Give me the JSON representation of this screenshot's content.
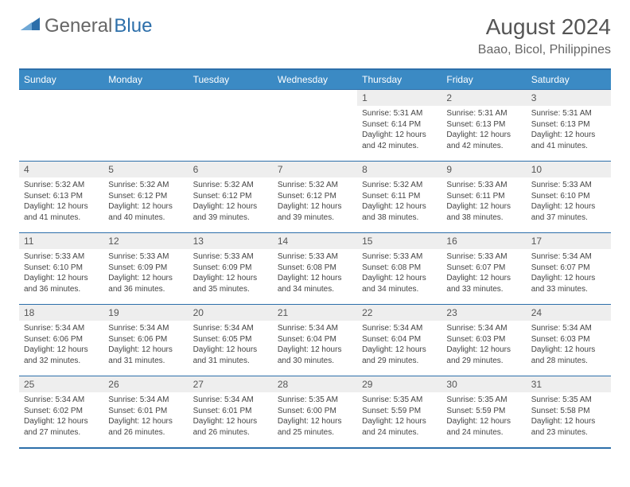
{
  "colors": {
    "header_blue": "#3b8ac4",
    "rule_blue": "#2d6faa",
    "daynum_bg": "#eeeeee",
    "text": "#444444",
    "title_text": "#555555",
    "logo_blue": "#2d6faa"
  },
  "logo": {
    "general": "General",
    "blue": "Blue"
  },
  "title": "August 2024",
  "location": "Baao, Bicol, Philippines",
  "days_of_week": [
    "Sunday",
    "Monday",
    "Tuesday",
    "Wednesday",
    "Thursday",
    "Friday",
    "Saturday"
  ],
  "labels": {
    "sunrise": "Sunrise:",
    "sunset": "Sunset:",
    "daylight_prefix": "Daylight:"
  },
  "weeks": [
    [
      null,
      null,
      null,
      null,
      {
        "n": "1",
        "sr": "5:31 AM",
        "ss": "6:14 PM",
        "dl": "12 hours and 42 minutes."
      },
      {
        "n": "2",
        "sr": "5:31 AM",
        "ss": "6:13 PM",
        "dl": "12 hours and 42 minutes."
      },
      {
        "n": "3",
        "sr": "5:31 AM",
        "ss": "6:13 PM",
        "dl": "12 hours and 41 minutes."
      }
    ],
    [
      {
        "n": "4",
        "sr": "5:32 AM",
        "ss": "6:13 PM",
        "dl": "12 hours and 41 minutes."
      },
      {
        "n": "5",
        "sr": "5:32 AM",
        "ss": "6:12 PM",
        "dl": "12 hours and 40 minutes."
      },
      {
        "n": "6",
        "sr": "5:32 AM",
        "ss": "6:12 PM",
        "dl": "12 hours and 39 minutes."
      },
      {
        "n": "7",
        "sr": "5:32 AM",
        "ss": "6:12 PM",
        "dl": "12 hours and 39 minutes."
      },
      {
        "n": "8",
        "sr": "5:32 AM",
        "ss": "6:11 PM",
        "dl": "12 hours and 38 minutes."
      },
      {
        "n": "9",
        "sr": "5:33 AM",
        "ss": "6:11 PM",
        "dl": "12 hours and 38 minutes."
      },
      {
        "n": "10",
        "sr": "5:33 AM",
        "ss": "6:10 PM",
        "dl": "12 hours and 37 minutes."
      }
    ],
    [
      {
        "n": "11",
        "sr": "5:33 AM",
        "ss": "6:10 PM",
        "dl": "12 hours and 36 minutes."
      },
      {
        "n": "12",
        "sr": "5:33 AM",
        "ss": "6:09 PM",
        "dl": "12 hours and 36 minutes."
      },
      {
        "n": "13",
        "sr": "5:33 AM",
        "ss": "6:09 PM",
        "dl": "12 hours and 35 minutes."
      },
      {
        "n": "14",
        "sr": "5:33 AM",
        "ss": "6:08 PM",
        "dl": "12 hours and 34 minutes."
      },
      {
        "n": "15",
        "sr": "5:33 AM",
        "ss": "6:08 PM",
        "dl": "12 hours and 34 minutes."
      },
      {
        "n": "16",
        "sr": "5:33 AM",
        "ss": "6:07 PM",
        "dl": "12 hours and 33 minutes."
      },
      {
        "n": "17",
        "sr": "5:34 AM",
        "ss": "6:07 PM",
        "dl": "12 hours and 33 minutes."
      }
    ],
    [
      {
        "n": "18",
        "sr": "5:34 AM",
        "ss": "6:06 PM",
        "dl": "12 hours and 32 minutes."
      },
      {
        "n": "19",
        "sr": "5:34 AM",
        "ss": "6:06 PM",
        "dl": "12 hours and 31 minutes."
      },
      {
        "n": "20",
        "sr": "5:34 AM",
        "ss": "6:05 PM",
        "dl": "12 hours and 31 minutes."
      },
      {
        "n": "21",
        "sr": "5:34 AM",
        "ss": "6:04 PM",
        "dl": "12 hours and 30 minutes."
      },
      {
        "n": "22",
        "sr": "5:34 AM",
        "ss": "6:04 PM",
        "dl": "12 hours and 29 minutes."
      },
      {
        "n": "23",
        "sr": "5:34 AM",
        "ss": "6:03 PM",
        "dl": "12 hours and 29 minutes."
      },
      {
        "n": "24",
        "sr": "5:34 AM",
        "ss": "6:03 PM",
        "dl": "12 hours and 28 minutes."
      }
    ],
    [
      {
        "n": "25",
        "sr": "5:34 AM",
        "ss": "6:02 PM",
        "dl": "12 hours and 27 minutes."
      },
      {
        "n": "26",
        "sr": "5:34 AM",
        "ss": "6:01 PM",
        "dl": "12 hours and 26 minutes."
      },
      {
        "n": "27",
        "sr": "5:34 AM",
        "ss": "6:01 PM",
        "dl": "12 hours and 26 minutes."
      },
      {
        "n": "28",
        "sr": "5:35 AM",
        "ss": "6:00 PM",
        "dl": "12 hours and 25 minutes."
      },
      {
        "n": "29",
        "sr": "5:35 AM",
        "ss": "5:59 PM",
        "dl": "12 hours and 24 minutes."
      },
      {
        "n": "30",
        "sr": "5:35 AM",
        "ss": "5:59 PM",
        "dl": "12 hours and 24 minutes."
      },
      {
        "n": "31",
        "sr": "5:35 AM",
        "ss": "5:58 PM",
        "dl": "12 hours and 23 minutes."
      }
    ]
  ]
}
